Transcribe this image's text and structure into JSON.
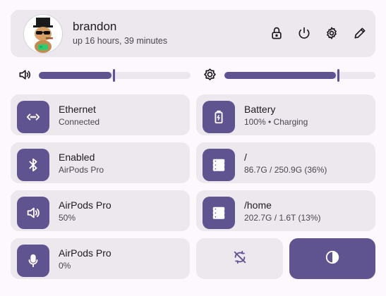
{
  "header": {
    "username": "brandon",
    "uptime": "up 16 hours, 39 minutes",
    "icons": [
      "lock-icon",
      "power-icon",
      "gear-icon",
      "pencil-icon"
    ]
  },
  "sliders": {
    "volume": {
      "icon": "speaker-icon",
      "level": 0.48
    },
    "brightness": {
      "icon": "sun-icon",
      "level": 0.74
    }
  },
  "tiles": [
    {
      "title": "Ethernet",
      "subtitle": "Connected",
      "icon": "ethernet-icon"
    },
    {
      "title": "Battery",
      "subtitle": "100% • Charging",
      "icon": "battery-charging-icon"
    },
    {
      "title": "Enabled",
      "subtitle": "AirPods Pro",
      "icon": "bluetooth-icon"
    },
    {
      "title": "/",
      "subtitle": "86.7G / 250.9G (36%)",
      "icon": "storage-icon"
    },
    {
      "title": "AirPods Pro",
      "subtitle": "50%",
      "icon": "speaker-icon"
    },
    {
      "title": "/home",
      "subtitle": "202.7G / 1.6T (13%)",
      "icon": "storage-icon"
    },
    {
      "title": "AirPods Pro",
      "subtitle": "0%",
      "icon": "microphone-icon"
    }
  ],
  "toggles": {
    "sync_disabled": {
      "icon": "sync-disabled-icon",
      "active": false
    },
    "dark_mode": {
      "icon": "contrast-icon",
      "active": true
    }
  },
  "colors": {
    "accent": "#5f5490",
    "surface": "#ede7ee",
    "background": "#fdf8fd"
  }
}
